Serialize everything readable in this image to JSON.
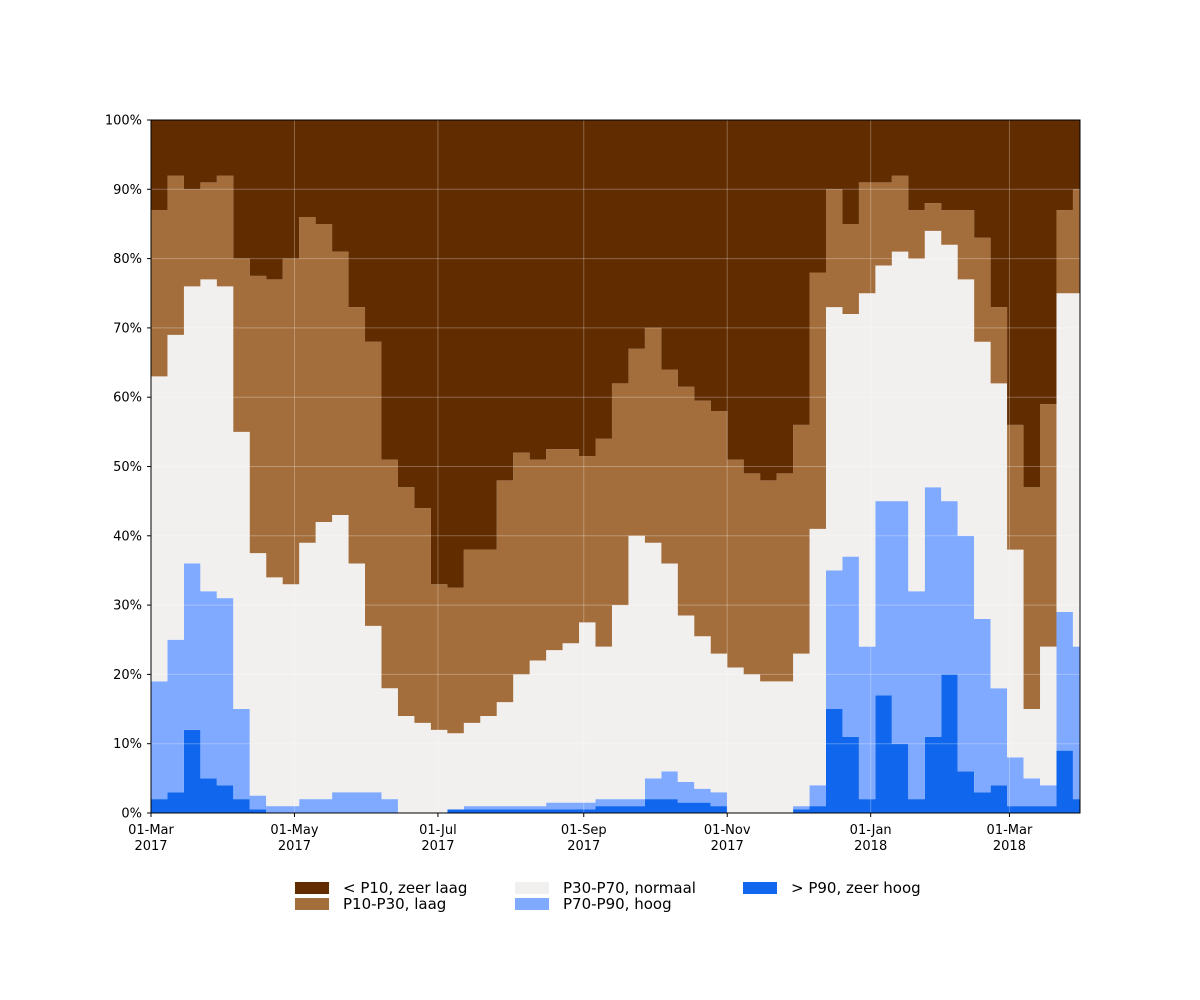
{
  "chart_data": {
    "type": "area",
    "stacked": true,
    "title": "",
    "xlabel": "",
    "ylabel": "",
    "x_range": [
      "2017-03-01",
      "2018-03-31"
    ],
    "ylim": [
      0,
      100
    ],
    "grid": true,
    "legend_position": "bottom",
    "x_ticks": [
      {
        "date": "2017-03-01",
        "line1": "01-Mar",
        "line2": "2017"
      },
      {
        "date": "2017-05-01",
        "line1": "01-May",
        "line2": "2017"
      },
      {
        "date": "2017-07-01",
        "line1": "01-Jul",
        "line2": "2017"
      },
      {
        "date": "2017-09-01",
        "line1": "01-Sep",
        "line2": "2017"
      },
      {
        "date": "2017-11-01",
        "line1": "01-Nov",
        "line2": "2017"
      },
      {
        "date": "2018-01-01",
        "line1": "01-Jan",
        "line2": "2018"
      },
      {
        "date": "2018-03-01",
        "line1": "01-Mar",
        "line2": "2018"
      }
    ],
    "y_ticks": [
      {
        "value": 0,
        "label": "0%"
      },
      {
        "value": 10,
        "label": "10%"
      },
      {
        "value": 20,
        "label": "20%"
      },
      {
        "value": 30,
        "label": "30%"
      },
      {
        "value": 40,
        "label": "40%"
      },
      {
        "value": 50,
        "label": "50%"
      },
      {
        "value": 60,
        "label": "60%"
      },
      {
        "value": 70,
        "label": "70%"
      },
      {
        "value": 80,
        "label": "80%"
      },
      {
        "value": 90,
        "label": "90%"
      },
      {
        "value": 100,
        "label": "100%"
      }
    ],
    "x": [
      "2017-03-01",
      "2017-03-08",
      "2017-03-15",
      "2017-03-22",
      "2017-03-29",
      "2017-04-05",
      "2017-04-12",
      "2017-04-19",
      "2017-04-26",
      "2017-05-03",
      "2017-05-10",
      "2017-05-17",
      "2017-05-24",
      "2017-05-31",
      "2017-06-07",
      "2017-06-14",
      "2017-06-21",
      "2017-06-28",
      "2017-07-05",
      "2017-07-12",
      "2017-07-19",
      "2017-07-26",
      "2017-08-02",
      "2017-08-09",
      "2017-08-16",
      "2017-08-23",
      "2017-08-30",
      "2017-09-06",
      "2017-09-13",
      "2017-09-20",
      "2017-09-27",
      "2017-10-04",
      "2017-10-11",
      "2017-10-18",
      "2017-10-25",
      "2017-11-01",
      "2017-11-08",
      "2017-11-15",
      "2017-11-22",
      "2017-11-29",
      "2017-12-06",
      "2017-12-13",
      "2017-12-20",
      "2017-12-27",
      "2018-01-03",
      "2018-01-10",
      "2018-01-17",
      "2018-01-24",
      "2018-01-31",
      "2018-02-07",
      "2018-02-14",
      "2018-02-21",
      "2018-02-28",
      "2018-03-07",
      "2018-03-14",
      "2018-03-21",
      "2018-03-28"
    ],
    "series": [
      {
        "name": "> P90, zeer hoog",
        "color": "#1166ee",
        "values": [
          2,
          3,
          12,
          5,
          4,
          2,
          0.5,
          0,
          0,
          0,
          0,
          0,
          0,
          0,
          0,
          0,
          0,
          0,
          0.5,
          0.5,
          0.5,
          0.5,
          0.5,
          0.5,
          0.5,
          0.5,
          0.5,
          1,
          1,
          1,
          2,
          2,
          1.5,
          1.5,
          1,
          0,
          0,
          0,
          0,
          0.5,
          1,
          15,
          11,
          2,
          17,
          10,
          2,
          11,
          20,
          6,
          3,
          4,
          1,
          1,
          1,
          9,
          2
        ]
      },
      {
        "name": "P70-P90, hoog",
        "color": "#7faaff",
        "values": [
          17,
          22,
          24,
          27,
          27,
          13,
          2,
          1,
          1,
          2,
          2,
          3,
          3,
          3,
          2,
          0,
          0,
          0,
          0,
          0.5,
          0.5,
          0.5,
          0.5,
          0.5,
          1,
          1,
          1,
          1,
          1,
          1,
          3,
          4,
          3,
          2,
          2,
          0,
          0,
          0,
          0,
          0.5,
          3,
          20,
          26,
          22,
          28,
          35,
          30,
          36,
          25,
          34,
          25,
          14,
          7,
          4,
          3,
          20,
          22
        ]
      },
      {
        "name": "P30-P70, normaal",
        "color": "#f2f0ef",
        "values": [
          44,
          44,
          40,
          45,
          45,
          40,
          35,
          33,
          32,
          37,
          40,
          40,
          33,
          24,
          16,
          14,
          13,
          12,
          11,
          12,
          13,
          15,
          19,
          21,
          22,
          23,
          26,
          22,
          28,
          38,
          34,
          30,
          24,
          22,
          20,
          21,
          20,
          19,
          19,
          22,
          37,
          38,
          35,
          51,
          34,
          36,
          48,
          37,
          37,
          37,
          40,
          44,
          30,
          10,
          20,
          46,
          51
        ]
      },
      {
        "name": "P10-P30, laag",
        "color": "#a46e3c",
        "values": [
          24,
          23,
          14,
          14,
          16,
          25,
          40,
          43,
          47,
          47,
          43,
          38,
          37,
          41,
          33,
          33,
          31,
          21,
          21,
          25,
          24,
          32,
          32,
          29,
          29,
          28,
          24,
          30,
          32,
          27,
          31,
          28,
          33,
          34,
          35,
          30,
          29,
          29,
          30,
          33,
          37,
          17,
          13,
          16,
          12,
          11,
          7,
          4,
          5,
          10,
          15,
          11,
          18,
          32,
          35,
          12,
          15
        ]
      },
      {
        "name": "< P10, zeer laag",
        "color": "#612c00",
        "values": [
          13,
          8,
          10,
          9,
          8,
          20,
          22,
          23,
          20,
          14,
          15,
          19,
          27,
          32,
          49,
          53,
          56,
          67,
          67,
          62,
          62,
          52,
          48,
          49,
          47,
          47,
          48,
          46,
          38,
          33,
          30,
          36,
          38,
          40,
          42,
          49,
          50,
          52,
          51,
          44,
          22,
          10,
          15,
          9,
          9,
          8,
          13,
          12,
          13,
          13,
          17,
          27,
          44,
          53,
          41,
          13,
          10
        ]
      }
    ]
  }
}
